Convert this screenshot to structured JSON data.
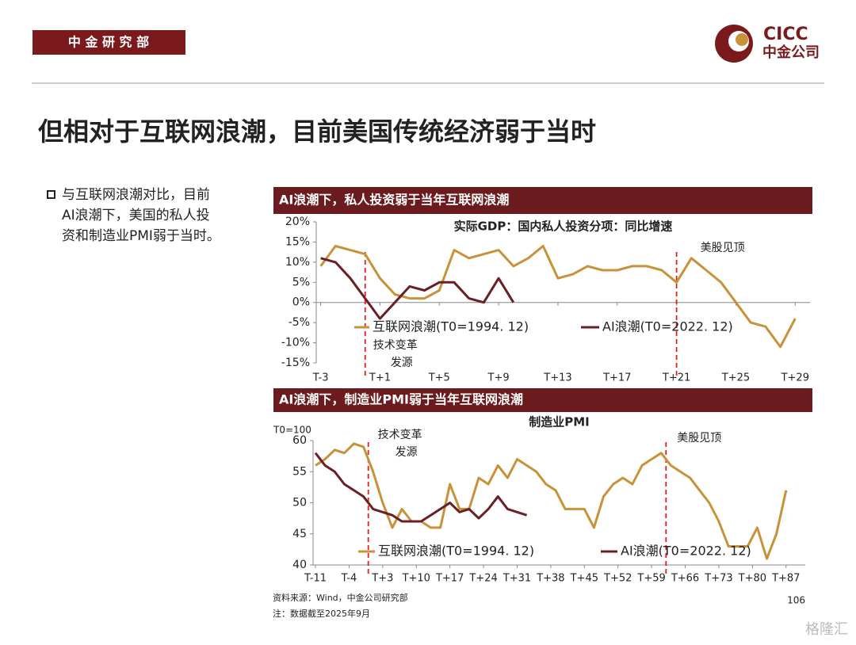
{
  "header": {
    "department": "中 金 研 究 部",
    "logo_en": "CICC",
    "logo_cn": "中金公司"
  },
  "title": "但相对于互联网浪潮，目前美国传统经济弱于当时",
  "bullets": [
    [
      "与互联网浪潮对比，目前",
      "AI浪潮下，美国的私人投",
      "资和制造业PMI弱于当时。"
    ]
  ],
  "chart_data": [
    {
      "type": "line",
      "header": "AI浪潮下，私人投资弱于当年互联网浪潮",
      "title": "实际GDP：国内私人投资分项：同比增速",
      "x": [
        -3,
        -2,
        -1,
        0,
        1,
        2,
        3,
        4,
        5,
        6,
        7,
        8,
        9,
        10,
        11,
        12,
        13,
        14,
        15,
        16,
        17,
        18,
        19,
        20,
        21,
        22,
        23,
        24,
        25,
        26,
        27,
        28,
        29
      ],
      "series": [
        {
          "name": "互联网浪潮(T0=1994. 12)",
          "color": "#c8923a",
          "values": [
            9,
            14,
            13,
            12,
            6,
            2,
            1,
            1,
            3,
            13,
            11,
            12,
            13,
            9,
            11,
            14,
            6,
            7,
            9,
            8,
            8,
            9,
            9,
            8,
            5,
            11,
            8,
            5,
            0,
            -5,
            -6,
            -11,
            -4
          ]
        },
        {
          "name": "AI浪潮(T0=2022. 12)",
          "color": "#6b1f24",
          "values": [
            11,
            10,
            6,
            1,
            -4,
            0,
            4,
            3,
            5,
            5,
            1,
            0,
            6,
            0,
            null,
            null,
            null,
            null,
            null,
            null,
            null,
            null,
            null,
            null,
            null,
            null,
            null,
            null,
            null,
            null,
            null,
            null,
            null
          ]
        }
      ],
      "xlim": [
        -3.3,
        30
      ],
      "xticks": [
        {
          "value": -3,
          "label": "T-3"
        },
        {
          "value": 1,
          "label": "T+1"
        },
        {
          "value": 5,
          "label": "T+5"
        },
        {
          "value": 9,
          "label": "T+9"
        },
        {
          "value": 13,
          "label": "T+13"
        },
        {
          "value": 17,
          "label": "T+17"
        },
        {
          "value": 21,
          "label": "T+21"
        },
        {
          "value": 25,
          "label": "T+25"
        },
        {
          "value": 29,
          "label": "T+29"
        }
      ],
      "ylim": [
        -15,
        20
      ],
      "yticks": [
        {
          "value": -15,
          "label": "-15%"
        },
        {
          "value": -10,
          "label": "-10%"
        },
        {
          "value": -5,
          "label": "-5%"
        },
        {
          "value": 0,
          "label": "0%"
        },
        {
          "value": 5,
          "label": "5%"
        },
        {
          "value": 10,
          "label": "10%"
        },
        {
          "value": 15,
          "label": "15%"
        },
        {
          "value": 20,
          "label": "20%"
        }
      ],
      "annotations": [
        {
          "text": [
            "技术变革",
            "发源"
          ],
          "x": 0
        },
        {
          "text": [
            "美股见顶"
          ],
          "x": 21
        }
      ]
    },
    {
      "type": "line",
      "header": "AI浪潮下，制造业PMI弱于当年互联网浪潮",
      "title": "制造业PMI",
      "y_label": "T0=100",
      "x": [
        -11,
        -9,
        -7,
        -5,
        -3,
        -1,
        1,
        3,
        5,
        7,
        9,
        11,
        13,
        15,
        17,
        19,
        21,
        23,
        25,
        27,
        29,
        31,
        33,
        35,
        37,
        39,
        41,
        43,
        45,
        47,
        49,
        51,
        53,
        55,
        57,
        59,
        61,
        63,
        65,
        67,
        69,
        71,
        73,
        75,
        77,
        79,
        81,
        83,
        85,
        87
      ],
      "series": [
        {
          "name": "互联网浪潮(T0=1994. 12)",
          "color": "#c8923a",
          "values": [
            56,
            57,
            58.5,
            58,
            59.5,
            59,
            55,
            50,
            46,
            49,
            47,
            47,
            46,
            46,
            53,
            49,
            49,
            54,
            53,
            56,
            54,
            57,
            56,
            55,
            53,
            52,
            49,
            49,
            49,
            46,
            51,
            53,
            54,
            53,
            56,
            57,
            58,
            56,
            55,
            54,
            52,
            50,
            47,
            43,
            43,
            43,
            46,
            41,
            45,
            52
          ]
        },
        {
          "name": "AI浪潮(T0=2022. 12)",
          "color": "#6b1f24",
          "values": [
            58,
            56,
            55,
            53,
            52,
            51,
            49,
            48.5,
            48,
            47,
            47,
            47,
            48,
            49,
            50,
            48.5,
            49,
            47.5,
            49,
            51,
            49,
            48.5,
            48,
            null,
            null,
            null,
            null,
            null,
            null,
            null,
            null,
            null,
            null,
            null,
            null,
            null,
            null,
            null,
            null,
            null,
            null,
            null,
            null,
            null,
            null,
            null,
            null,
            null,
            null,
            null
          ]
        }
      ],
      "xlim": [
        -11.5,
        91
      ],
      "xticks": [
        {
          "value": -11,
          "label": "T-11"
        },
        {
          "value": -4,
          "label": "T-4"
        },
        {
          "value": 3,
          "label": "T+3"
        },
        {
          "value": 10,
          "label": "T+10"
        },
        {
          "value": 17,
          "label": "T+17"
        },
        {
          "value": 24,
          "label": "T+24"
        },
        {
          "value": 31,
          "label": "T+31"
        },
        {
          "value": 38,
          "label": "T+38"
        },
        {
          "value": 45,
          "label": "T+45"
        },
        {
          "value": 52,
          "label": "T+52"
        },
        {
          "value": 59,
          "label": "T+59"
        },
        {
          "value": 66,
          "label": "T+66"
        },
        {
          "value": 73,
          "label": "T+73"
        },
        {
          "value": 80,
          "label": "T+80"
        },
        {
          "value": 87,
          "label": "T+87"
        }
      ],
      "ylim": [
        40,
        60
      ],
      "yticks": [
        40,
        45,
        50,
        55,
        60
      ],
      "annotations": [
        {
          "text": [
            "技术变革",
            "发源"
          ],
          "x": 0
        },
        {
          "text": [
            "美股见顶"
          ],
          "x": 62
        }
      ]
    }
  ],
  "footer": {
    "source": "资料来源：Wind，中金公司研究部",
    "note": "注：数据截至2025年9月",
    "page": "106",
    "watermark": "格隆汇"
  }
}
